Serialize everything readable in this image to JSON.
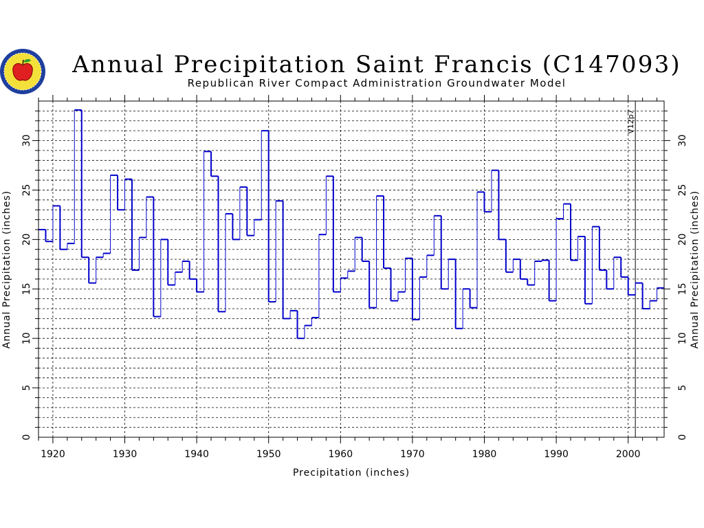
{
  "chart_data": {
    "type": "line",
    "step": true,
    "title": "Annual Precipitation Saint Francis (C147093)",
    "subtitle": "Republican River Compact Administration Groundwater Model",
    "xlabel": "Precipitation  (inches)",
    "ylabel": "Annual  Precipitation  (inches)",
    "xlim": [
      1918,
      2005
    ],
    "ylim": [
      0,
      34
    ],
    "x_ticks": [
      1920,
      1930,
      1940,
      1950,
      1960,
      1970,
      1980,
      1990,
      2000
    ],
    "y_ticks": [
      0,
      5,
      10,
      15,
      20,
      25,
      30
    ],
    "grid": true,
    "annotation": {
      "text": "V12p7",
      "x": 2001
    },
    "series": [
      {
        "color": "#0000cc",
        "x": [
          1918,
          1919,
          1920,
          1921,
          1922,
          1923,
          1924,
          1925,
          1926,
          1927,
          1928,
          1929,
          1930,
          1931,
          1932,
          1933,
          1934,
          1935,
          1936,
          1937,
          1938,
          1939,
          1940,
          1941,
          1942,
          1943,
          1944,
          1945,
          1946,
          1947,
          1948,
          1949,
          1950,
          1951,
          1952,
          1953,
          1954,
          1955,
          1956,
          1957,
          1958,
          1959,
          1960,
          1961,
          1962,
          1963,
          1964,
          1965,
          1966,
          1967,
          1968,
          1969,
          1970,
          1971,
          1972,
          1973,
          1974,
          1975,
          1976,
          1977,
          1978,
          1979,
          1980,
          1981,
          1982,
          1983,
          1984,
          1985,
          1986,
          1987,
          1988,
          1989,
          1990,
          1991,
          1992,
          1993,
          1994,
          1995,
          1996,
          1997,
          1998,
          1999,
          2000,
          2001,
          2002,
          2003,
          2004
        ],
        "values": [
          21.0,
          19.8,
          23.4,
          19.0,
          19.6,
          33.1,
          18.2,
          15.6,
          18.2,
          18.6,
          26.5,
          23.0,
          26.1,
          16.9,
          20.2,
          24.3,
          12.2,
          20.0,
          15.4,
          16.7,
          17.8,
          16.0,
          14.7,
          28.9,
          26.4,
          12.7,
          22.6,
          20.0,
          25.3,
          20.4,
          22.0,
          31.0,
          13.7,
          23.9,
          12.0,
          12.8,
          10.0,
          11.3,
          12.1,
          20.5,
          26.4,
          14.7,
          16.1,
          16.8,
          20.2,
          17.8,
          13.1,
          24.4,
          17.1,
          13.8,
          14.7,
          18.1,
          11.9,
          16.2,
          18.4,
          22.4,
          15.0,
          18.0,
          11.0,
          15.0,
          13.1,
          24.8,
          22.8,
          27.0,
          20.0,
          16.7,
          18.0,
          16.0,
          15.4,
          17.8,
          17.9,
          13.8,
          22.1,
          23.6,
          17.9,
          20.3,
          13.5,
          21.3,
          16.9,
          15.0,
          18.2,
          16.2,
          14.4,
          15.6,
          13.0,
          13.8,
          15.1
        ]
      }
    ]
  }
}
